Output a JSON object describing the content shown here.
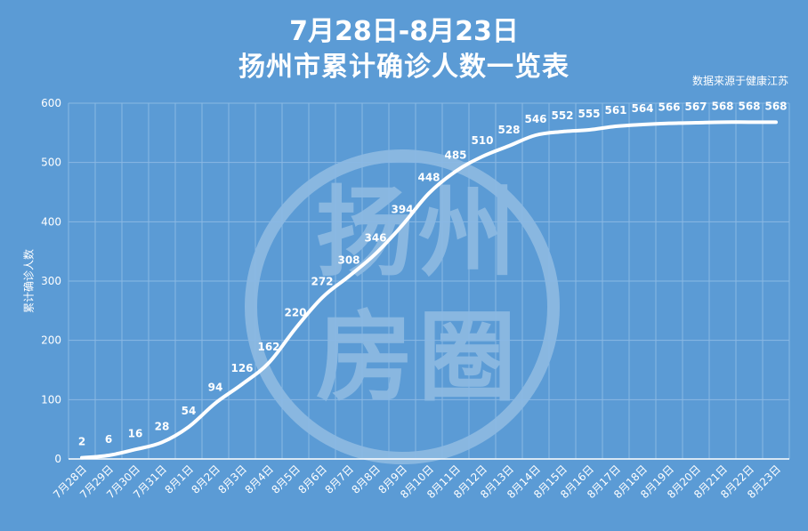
{
  "title_line1": "7月28日-8月23日",
  "title_line2": "扬州市累计确诊人数一览表",
  "source_note": "数据来源于健康江苏",
  "watermark": {
    "chars": [
      "扬",
      "州",
      "房",
      "圈"
    ]
  },
  "colors": {
    "background": "#5b9bd5",
    "line": "#ffffff",
    "grid": "#8ab8e4",
    "text": "#ffffff"
  },
  "chart_data": {
    "type": "line",
    "ylabel": "累计确诊人数",
    "xlabel": "",
    "ylim": [
      0,
      600
    ],
    "yticks": [
      0,
      100,
      200,
      300,
      400,
      500,
      600
    ],
    "grid": true,
    "categories": [
      "7月28日",
      "7月29日",
      "7月30日",
      "7月31日",
      "8月1日",
      "8月2日",
      "8月3日",
      "8月4日",
      "8月5日",
      "8月6日",
      "8月7日",
      "8月8日",
      "8月9日",
      "8月10日",
      "8月11日",
      "8月12日",
      "8月13日",
      "8月14日",
      "8月15日",
      "8月16日",
      "8月17日",
      "8月18日",
      "8月19日",
      "8月20日",
      "8月21日",
      "8月22日",
      "8月23日"
    ],
    "values": [
      2,
      6,
      16,
      28,
      54,
      94,
      126,
      162,
      220,
      272,
      308,
      346,
      394,
      448,
      485,
      510,
      528,
      546,
      552,
      555,
      561,
      564,
      566,
      567,
      568,
      568,
      568
    ]
  }
}
